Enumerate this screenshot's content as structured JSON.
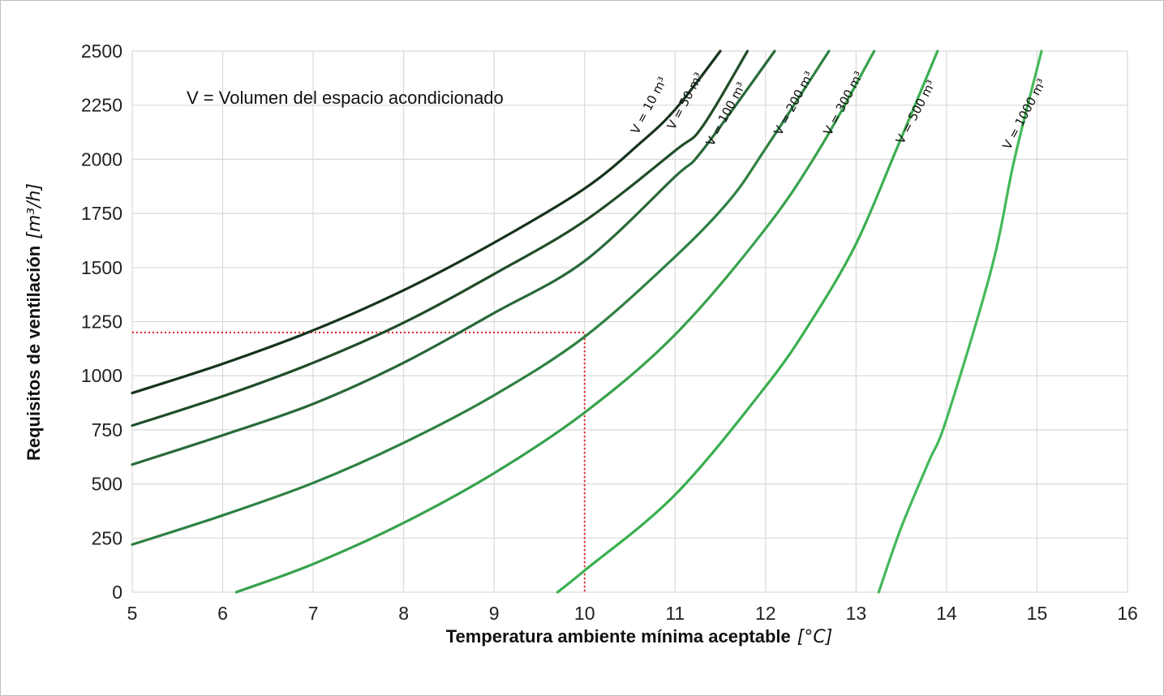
{
  "chart_data": {
    "type": "line",
    "title": "",
    "annotation": "V = Volumen del espacio acondicionado",
    "xlabel": "Temperatura ambiente mínima aceptable",
    "xlabel_unit": "[°C]",
    "ylabel": "Requisitos de ventilación",
    "ylabel_unit": "[m³/h]",
    "xlim": [
      5,
      16
    ],
    "ylim": [
      0,
      2500
    ],
    "xticks": [
      "5",
      "6",
      "7",
      "8",
      "9",
      "10",
      "11",
      "12",
      "13",
      "14",
      "15",
      "16"
    ],
    "yticks": [
      "0",
      "250",
      "500",
      "750",
      "1000",
      "1250",
      "1500",
      "1750",
      "2000",
      "2250",
      "2500"
    ],
    "grid": true,
    "legend": "none",
    "reference_point": {
      "x": 10,
      "y": 1200,
      "color": "#e02020"
    },
    "series": [
      {
        "name": "V = 10 m³",
        "color": "#16331c",
        "points": [
          [
            5,
            920
          ],
          [
            6,
            1055
          ],
          [
            7,
            1210
          ],
          [
            8,
            1395
          ],
          [
            9,
            1615
          ],
          [
            10,
            1865
          ],
          [
            10.6,
            2070
          ],
          [
            11,
            2230
          ],
          [
            11.5,
            2500
          ]
        ]
      },
      {
        "name": "V = 50 m³",
        "color": "#1f4d29",
        "points": [
          [
            5,
            770
          ],
          [
            6,
            905
          ],
          [
            7,
            1060
          ],
          [
            8,
            1245
          ],
          [
            9,
            1470
          ],
          [
            10,
            1715
          ],
          [
            11,
            2040
          ],
          [
            11.3,
            2150
          ],
          [
            11.8,
            2500
          ]
        ]
      },
      {
        "name": "V = 100 m³",
        "color": "#29693a",
        "points": [
          [
            5,
            590
          ],
          [
            6,
            725
          ],
          [
            7,
            870
          ],
          [
            8,
            1060
          ],
          [
            9,
            1290
          ],
          [
            10,
            1530
          ],
          [
            11,
            1920
          ],
          [
            11.3,
            2040
          ],
          [
            12.1,
            2500
          ]
        ]
      },
      {
        "name": "V = 200 m³",
        "color": "#2f8142",
        "points": [
          [
            5,
            220
          ],
          [
            6,
            355
          ],
          [
            7,
            505
          ],
          [
            8,
            690
          ],
          [
            9,
            910
          ],
          [
            10,
            1180
          ],
          [
            11,
            1550
          ],
          [
            11.6,
            1810
          ],
          [
            12,
            2050
          ],
          [
            12.7,
            2500
          ]
        ]
      },
      {
        "name": "V = 300 m³",
        "color": "#37a24c",
        "points": [
          [
            6.15,
            0
          ],
          [
            7,
            130
          ],
          [
            8,
            320
          ],
          [
            9,
            550
          ],
          [
            10,
            830
          ],
          [
            11,
            1190
          ],
          [
            12,
            1680
          ],
          [
            12.6,
            2050
          ],
          [
            13.2,
            2500
          ]
        ]
      },
      {
        "name": "V = 500 m³",
        "color": "#3aaf50",
        "points": [
          [
            9.7,
            0
          ],
          [
            10,
            100
          ],
          [
            11,
            450
          ],
          [
            12,
            950
          ],
          [
            12.5,
            1250
          ],
          [
            13,
            1610
          ],
          [
            13.45,
            2050
          ],
          [
            13.9,
            2500
          ]
        ]
      },
      {
        "name": "V = 1000 m³",
        "color": "#44b95a",
        "points": [
          [
            13.25,
            0
          ],
          [
            13.5,
            300
          ],
          [
            13.8,
            600
          ],
          [
            14,
            800
          ],
          [
            14.5,
            1500
          ],
          [
            14.75,
            2000
          ],
          [
            15.05,
            2500
          ]
        ]
      }
    ],
    "curve_labels": [
      {
        "text": "V = 10 m³",
        "x": 10.75,
        "y": 2240
      },
      {
        "text": "V = 50 m³",
        "x": 11.15,
        "y": 2260
      },
      {
        "text": "V = 100 m³",
        "x": 11.6,
        "y": 2200
      },
      {
        "text": "V = 200 m³",
        "x": 12.35,
        "y": 2250
      },
      {
        "text": "V = 300 m³",
        "x": 12.9,
        "y": 2250
      },
      {
        "text": "V = 500 m³",
        "x": 13.7,
        "y": 2210
      },
      {
        "text": "V = 1000 m³",
        "x": 14.9,
        "y": 2200
      }
    ]
  }
}
